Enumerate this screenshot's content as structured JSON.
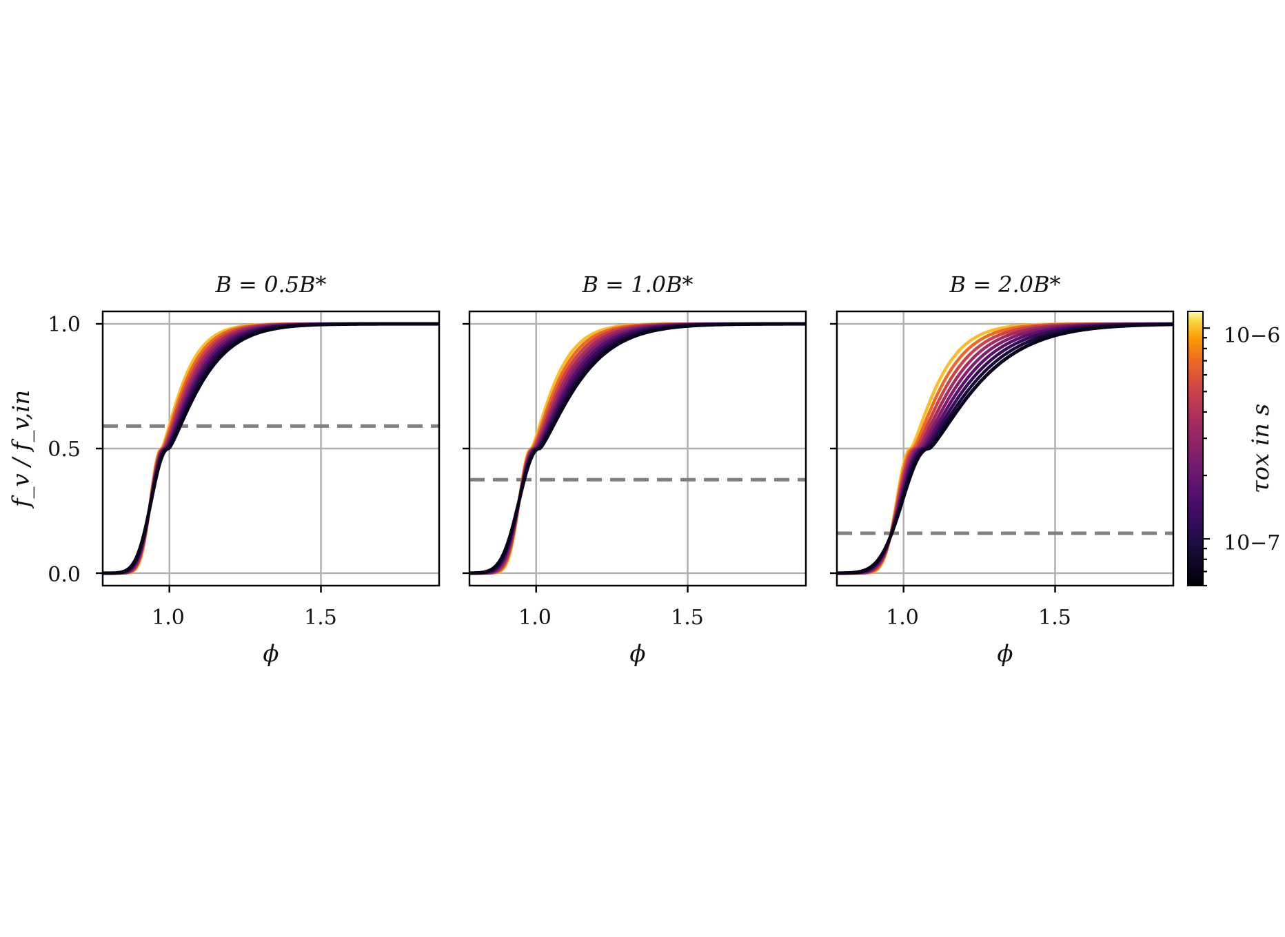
{
  "chart_data": {
    "type": "line",
    "layout": "three panels side by side sharing y axis, colorbar on right",
    "ylabel": "f_v / f_v,in",
    "xlabel": "ϕ",
    "xlim": [
      0.78,
      1.89
    ],
    "ylim": [
      -0.05,
      1.05
    ],
    "xticks": [
      1.0,
      1.5
    ],
    "xtick_labels": [
      "1.0",
      "1.5"
    ],
    "yticks": [
      0.0,
      0.5,
      1.0
    ],
    "ytick_labels": [
      "0.0",
      "0.5",
      "1.0"
    ],
    "grid": true,
    "colorbar": {
      "label": "τox in s",
      "colormap": "inferno",
      "scale": "log",
      "range": [
        6e-08,
        1.2e-06
      ],
      "tick_values": [
        1e-06,
        1e-07
      ],
      "tick_labels": [
        "10−6",
        "10−7"
      ]
    },
    "series_tau_values": [
      1e-06,
      7e-07,
      5e-07,
      3.5e-07,
      2.5e-07,
      1.7e-07,
      1.2e-07,
      9e-08,
      7e-08
    ],
    "panels": [
      {
        "title": "B = 0.5B*",
        "dashed_hline": 0.59,
        "center_range": [
          0.975,
          0.998
        ],
        "width_range": [
          0.055,
          0.085
        ]
      },
      {
        "title": "B = 1.0B*",
        "dashed_hline": 0.375,
        "center_range": [
          0.985,
          1.012
        ],
        "width_range": [
          0.06,
          0.1
        ]
      },
      {
        "title": "B = 2.0B*",
        "dashed_hline": 0.16,
        "center_range": [
          1.025,
          1.085
        ],
        "width_range": [
          0.07,
          0.13
        ]
      }
    ],
    "colors": {
      "grid": "#b0b0b0",
      "dashed": "#808080",
      "axes": "#000000"
    }
  }
}
